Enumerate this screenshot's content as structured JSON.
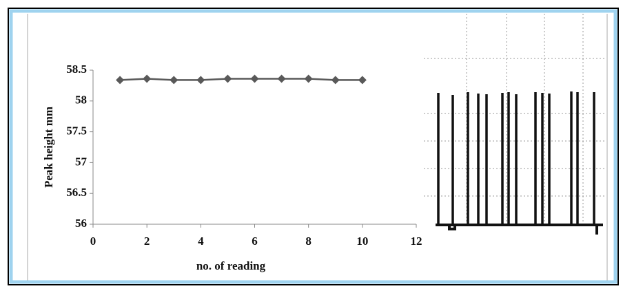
{
  "chart_data": {
    "type": "line",
    "x_label": "no. of reading",
    "y_label": "Peak height  mm",
    "x": [
      1,
      2,
      3,
      4,
      5,
      6,
      7,
      8,
      9,
      10
    ],
    "series": [
      {
        "color": "#595959",
        "values": [
          58.34,
          58.36,
          58.34,
          58.34,
          58.36,
          58.36,
          58.36,
          58.36,
          58.34,
          58.34
        ]
      }
    ],
    "xlim": [
      0,
      12
    ],
    "xticks": [
      0,
      2,
      4,
      6,
      8,
      10,
      12
    ],
    "ylim": [
      56,
      58.5
    ],
    "yticks": [
      56,
      56.5,
      57,
      57.5,
      58,
      58.5
    ]
  }
}
